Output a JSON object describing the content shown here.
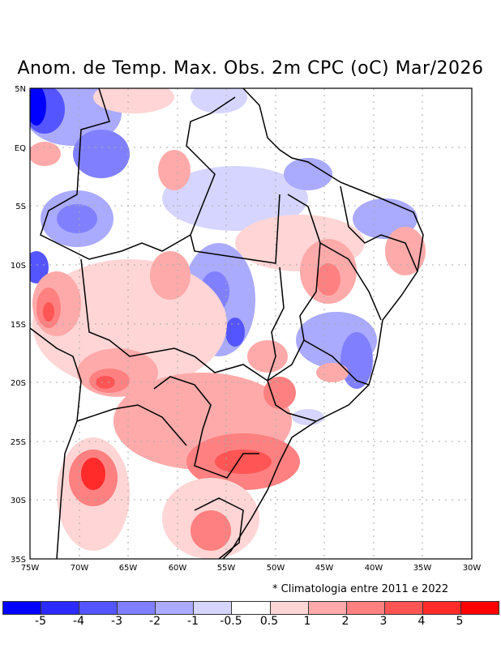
{
  "title": "Anom. de Temp. Max. Obs. 2m CPC (oC) Mar/2026",
  "note": "* Climatologia entre 2011 e 2022",
  "lat_ticks": [
    "5N",
    "EQ",
    "5S",
    "10S",
    "15S",
    "20S",
    "25S",
    "30S",
    "35S"
  ],
  "lon_ticks": [
    "75W",
    "70W",
    "65W",
    "60W",
    "55W",
    "50W",
    "45W",
    "40W",
    "35W",
    "30W"
  ],
  "colorbar": {
    "labels": [
      "-5",
      "-4",
      "-3",
      "-2",
      "-1",
      "-0.5",
      "0.5",
      "1",
      "2",
      "3",
      "4",
      "5"
    ],
    "colors": [
      "#0000ff",
      "#2b2bff",
      "#5555ff",
      "#8080ff",
      "#aaaaff",
      "#d5d5ff",
      "#ffffff",
      "#ffd5d5",
      "#ffaaaa",
      "#ff8080",
      "#ff5555",
      "#ff2b2b",
      "#ff0000"
    ]
  }
}
